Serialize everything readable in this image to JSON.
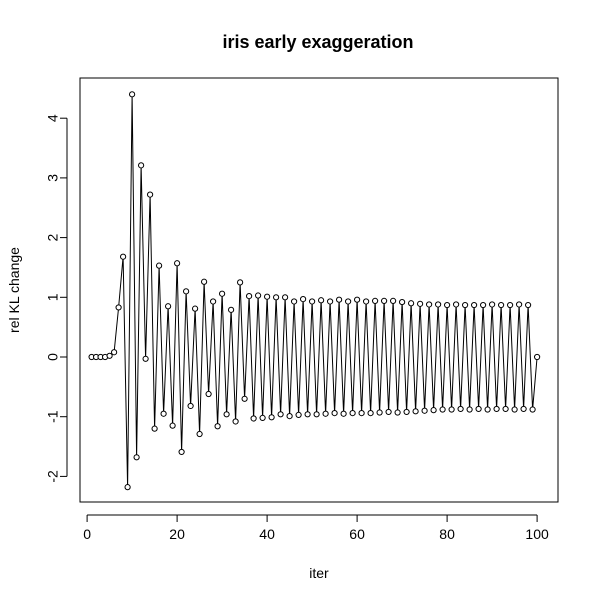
{
  "chart_data": {
    "type": "line",
    "title": "iris early exaggeration",
    "xlabel": "iter",
    "ylabel": "rel KL change",
    "xlim": [
      0,
      100
    ],
    "ylim": [
      -2.5,
      4.5
    ],
    "xticks": [
      0,
      20,
      40,
      60,
      80,
      100
    ],
    "yticks": [
      -2,
      -1,
      0,
      1,
      2,
      3,
      4
    ],
    "xtick_labels": [
      "0",
      "20",
      "40",
      "60",
      "80",
      "100"
    ],
    "ytick_labels": [
      "-2",
      "-1",
      "0",
      "1",
      "2",
      "3",
      "4"
    ],
    "line_color": "#000000",
    "marker": "open-circle",
    "grid": false,
    "legend": "none",
    "series": [
      {
        "x": [
          1,
          2,
          3,
          4,
          5,
          6,
          7,
          8,
          9,
          10,
          11,
          12,
          13,
          14,
          15,
          16,
          17,
          18,
          19,
          20,
          21,
          22,
          23,
          24,
          25,
          26,
          27,
          28,
          29,
          30,
          31,
          32,
          33,
          34,
          35,
          36,
          37,
          38,
          39,
          40,
          41,
          42,
          43,
          44,
          45,
          46,
          47,
          48,
          49,
          50,
          51,
          52,
          53,
          54,
          55,
          56,
          57,
          58,
          59,
          60,
          61,
          62,
          63,
          64,
          65,
          66,
          67,
          68,
          69,
          70,
          71,
          72,
          73,
          74,
          75,
          76,
          77,
          78,
          79,
          80,
          81,
          82,
          83,
          84,
          85,
          86,
          87,
          88,
          89,
          90,
          91,
          92,
          93,
          94,
          95,
          96,
          97,
          98,
          99,
          100
        ],
        "y": [
          0,
          0,
          0,
          0,
          0.02,
          0.08,
          0.83,
          1.68,
          -2.18,
          4.4,
          -1.68,
          3.21,
          -0.03,
          2.72,
          -1.2,
          1.53,
          -0.95,
          0.85,
          -1.15,
          1.57,
          -1.59,
          1.1,
          -0.82,
          0.81,
          -1.29,
          1.26,
          -0.62,
          0.93,
          -1.16,
          1.06,
          -0.96,
          0.79,
          -1.08,
          1.25,
          -0.7,
          1.02,
          -1.03,
          1.03,
          -1.02,
          1.01,
          -1.01,
          1.0,
          -0.96,
          1.0,
          -0.99,
          0.93,
          -0.97,
          0.97,
          -0.96,
          0.93,
          -0.96,
          0.95,
          -0.95,
          0.93,
          -0.94,
          0.96,
          -0.95,
          0.93,
          -0.94,
          0.96,
          -0.94,
          0.93,
          -0.94,
          0.94,
          -0.93,
          0.94,
          -0.92,
          0.94,
          -0.93,
          0.92,
          -0.92,
          0.9,
          -0.91,
          0.89,
          -0.9,
          0.88,
          -0.89,
          0.88,
          -0.88,
          0.87,
          -0.88,
          0.88,
          -0.87,
          0.87,
          -0.88,
          0.87,
          -0.87,
          0.87,
          -0.88,
          0.88,
          -0.87,
          0.87,
          -0.87,
          0.87,
          -0.88,
          0.88,
          -0.87,
          0.87,
          -0.88,
          0
        ]
      }
    ]
  }
}
